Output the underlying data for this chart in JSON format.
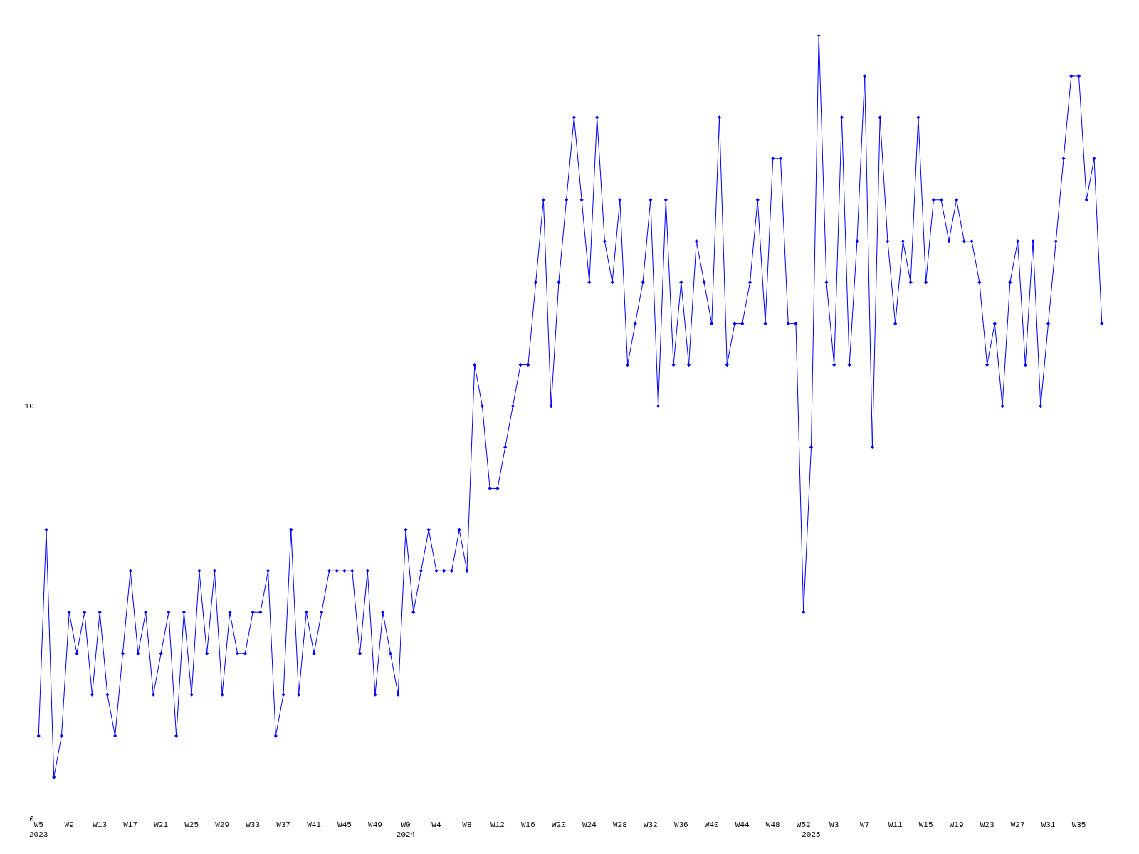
{
  "chart_data": {
    "type": "line",
    "categories": [
      "W5\n2023",
      null,
      null,
      null,
      "W9",
      null,
      null,
      null,
      "W13",
      null,
      null,
      null,
      "W17",
      null,
      null,
      null,
      "W21",
      null,
      null,
      null,
      "W25",
      null,
      null,
      null,
      "W29",
      null,
      null,
      null,
      "W33",
      null,
      null,
      null,
      "W37",
      null,
      null,
      null,
      "W41",
      null,
      null,
      null,
      "W45",
      null,
      null,
      null,
      "W49",
      null,
      null,
      null,
      "W0\n2024",
      null,
      null,
      null,
      "W4",
      null,
      null,
      null,
      "W8",
      null,
      null,
      null,
      "W12",
      null,
      null,
      null,
      "W16",
      null,
      null,
      null,
      "W20",
      null,
      null,
      null,
      "W24",
      null,
      null,
      null,
      "W28",
      null,
      null,
      null,
      "W32",
      null,
      null,
      null,
      "W36",
      null,
      null,
      null,
      "W40",
      null,
      null,
      null,
      "W44",
      null,
      null,
      null,
      "W48",
      null,
      null,
      null,
      "W52",
      "\n2025",
      null,
      null,
      "W3",
      null,
      null,
      null,
      "W7",
      null,
      null,
      null,
      "W11",
      null,
      null,
      null,
      "W15",
      null,
      null,
      null,
      "W19",
      null,
      null,
      null,
      "W23",
      null,
      null,
      null,
      "W27",
      null,
      null,
      null,
      "W31",
      null,
      null,
      null,
      "W35",
      null,
      null,
      null
    ],
    "series": [
      {
        "color": "#0000ff",
        "values": [
          2,
          7,
          1,
          2,
          5,
          4,
          5,
          3,
          5,
          3,
          2,
          4,
          6,
          4,
          5,
          3,
          4,
          5,
          2,
          5,
          3,
          6,
          4,
          6,
          3,
          5,
          4,
          4,
          5,
          5,
          6,
          2,
          3,
          7,
          3,
          5,
          4,
          5,
          6,
          6,
          6,
          6,
          4,
          6,
          3,
          5,
          4,
          3,
          7,
          5,
          6,
          7,
          6,
          6,
          6,
          7,
          6,
          11,
          10,
          8,
          8,
          9,
          10,
          11,
          11,
          13,
          15,
          10,
          13,
          15,
          17,
          15,
          13,
          17,
          14,
          13,
          15,
          11,
          12,
          13,
          15,
          10,
          15,
          11,
          13,
          11,
          14,
          13,
          12,
          17,
          11,
          12,
          12,
          13,
          15,
          12,
          16,
          16,
          12,
          12,
          5,
          9,
          19,
          13,
          11,
          17,
          11,
          14,
          18,
          9,
          17,
          14,
          12,
          14,
          13,
          17,
          13,
          15,
          15,
          14,
          15,
          14,
          14,
          13,
          11,
          12,
          10,
          13,
          14,
          11,
          14,
          10,
          12,
          14,
          16,
          18,
          18,
          15,
          16,
          12
        ]
      }
    ],
    "ylim": [
      0,
      19
    ],
    "yticks": [
      0,
      10
    ],
    "grid": "y",
    "marker": "diamond",
    "line_style": "solid"
  }
}
